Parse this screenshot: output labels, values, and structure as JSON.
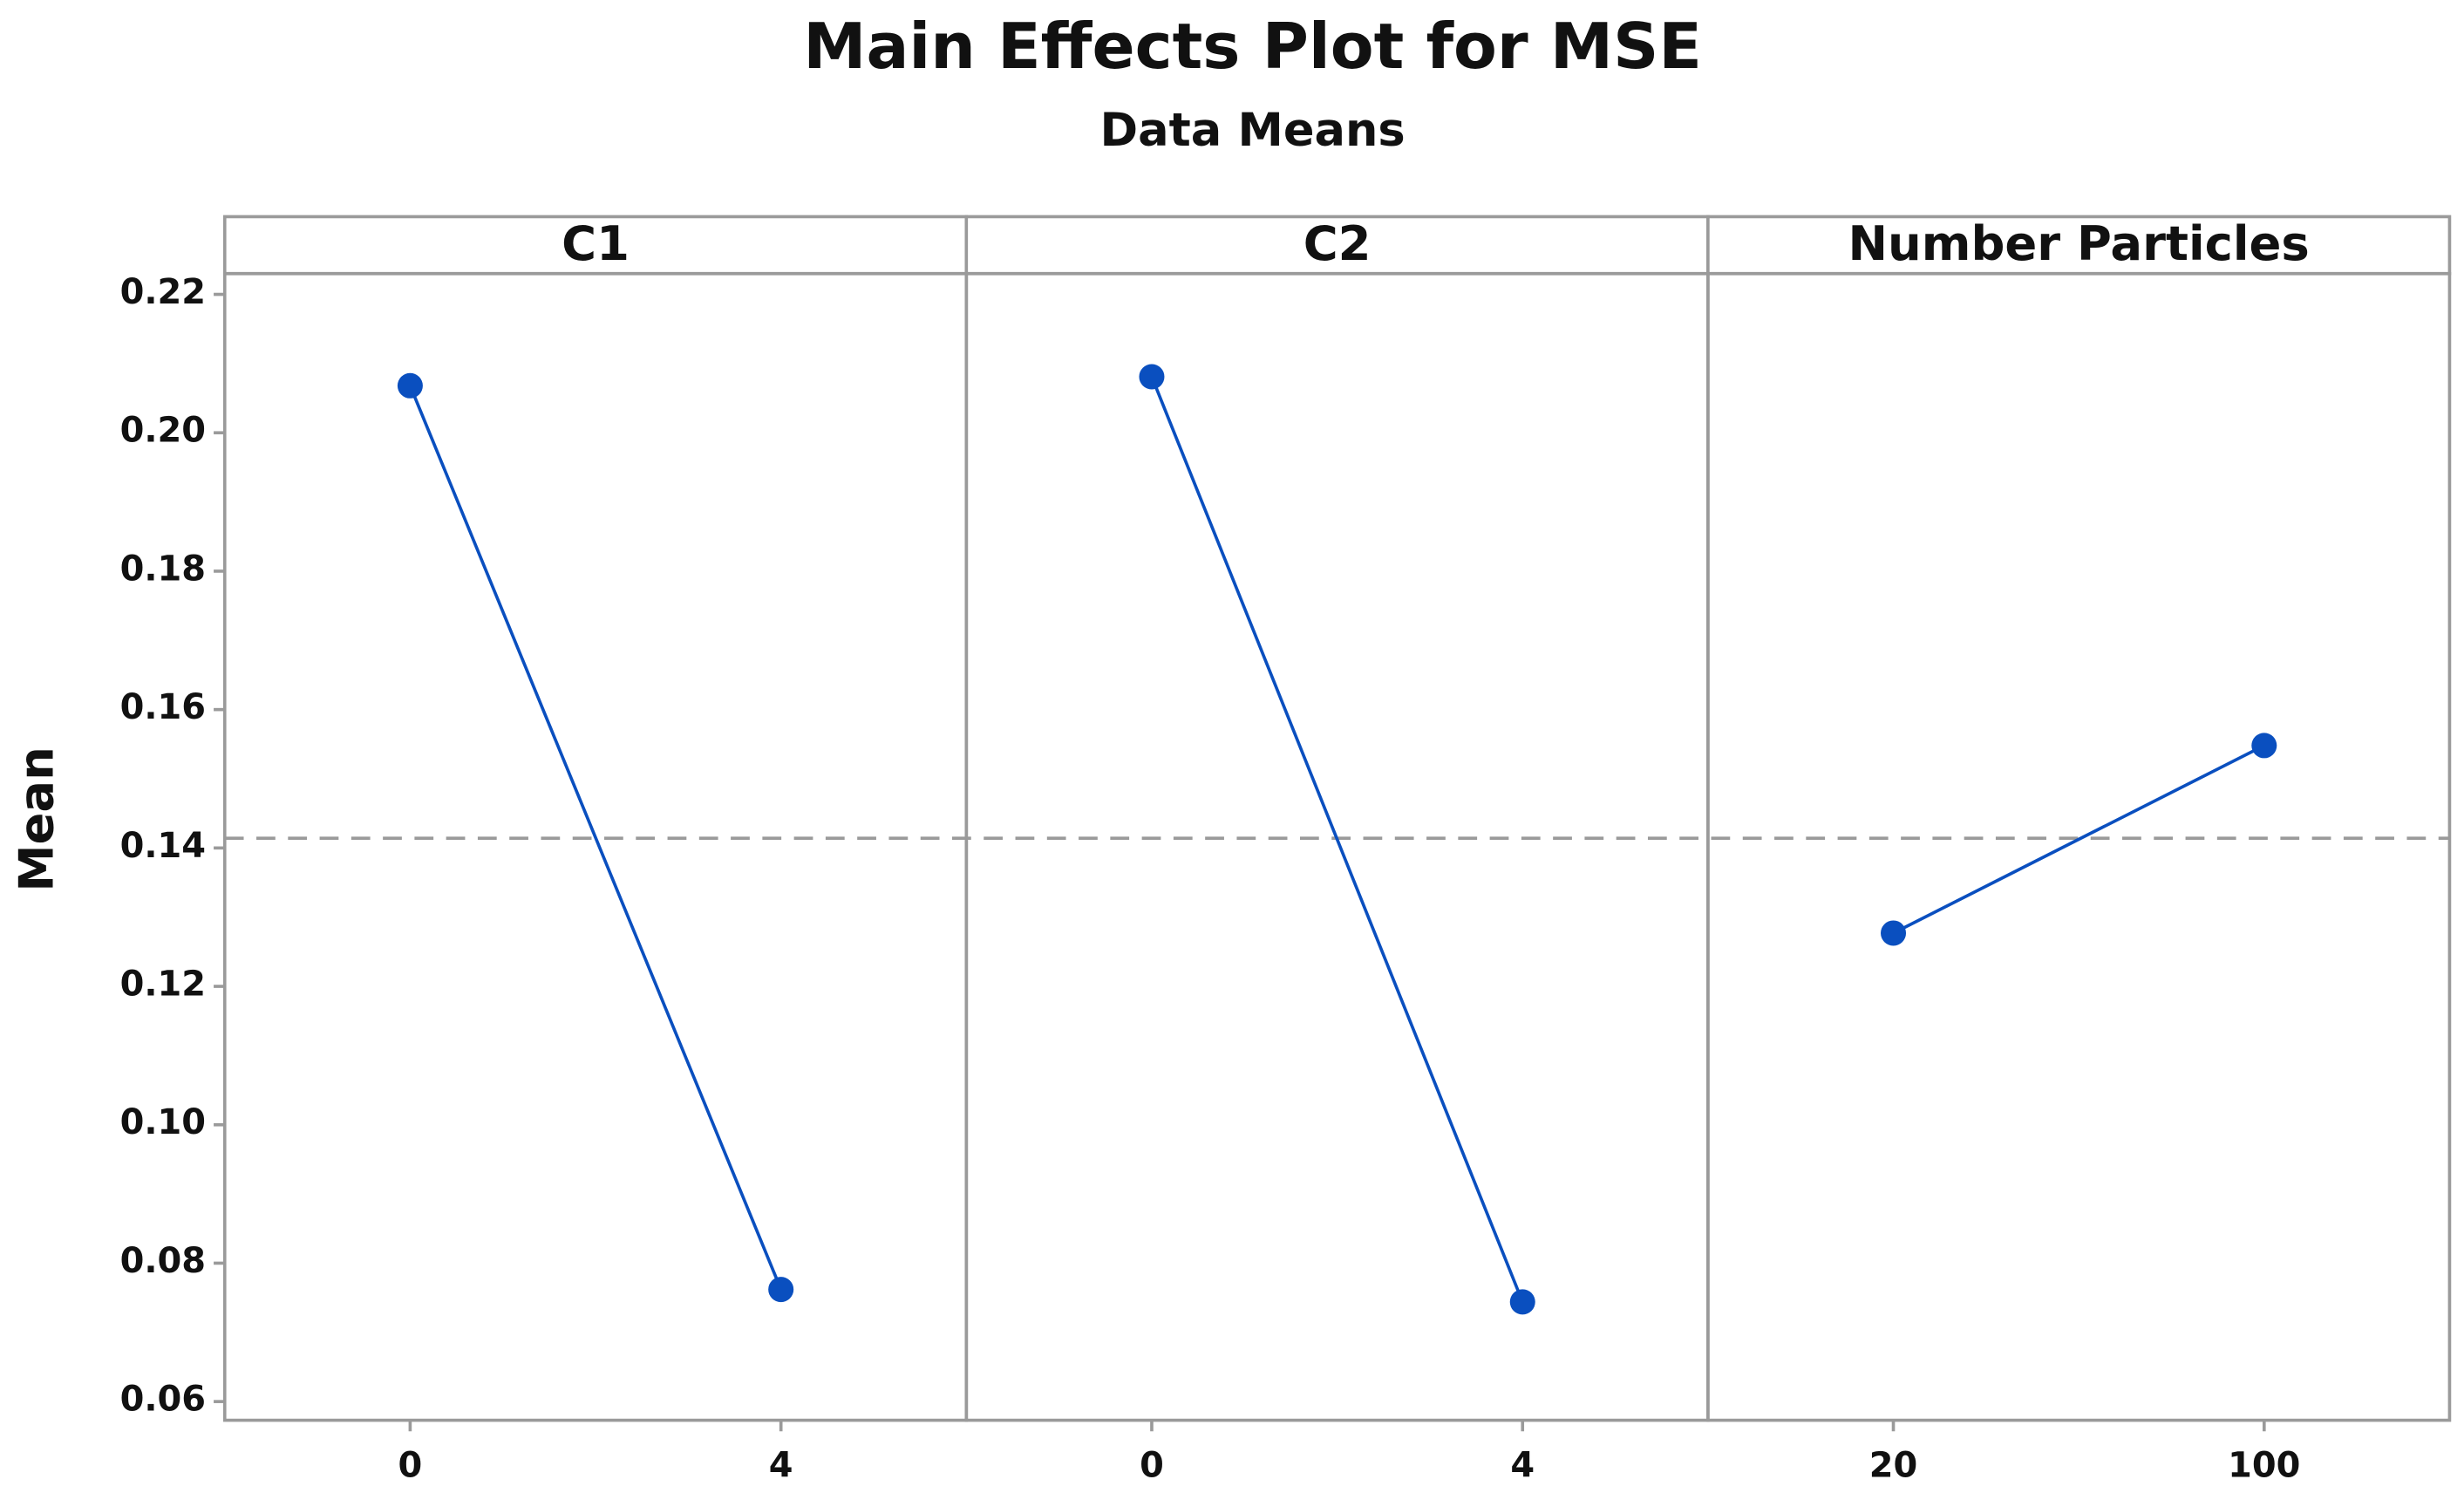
{
  "chart_data": {
    "type": "line",
    "title": "Main Effects Plot for MSE",
    "subtitle": "Data Means",
    "ylabel": "Mean",
    "color": "#0a4fbf",
    "ylim": [
      0.0573,
      0.223
    ],
    "yticks": [
      0.06,
      0.08,
      {
        "value": 0.1,
        "label": "0.10"
      },
      0.12,
      0.14,
      0.16,
      0.18,
      {
        "value": 0.2,
        "label": "0.20"
      },
      0.22
    ],
    "reference_line": 0.1414,
    "panels": [
      {
        "label": "C1",
        "categories": [
          "0",
          "4"
        ],
        "values": [
          0.2068,
          0.0762
        ]
      },
      {
        "label": "C2",
        "categories": [
          "0",
          "4"
        ],
        "values": [
          0.2081,
          0.0744
        ]
      },
      {
        "label": "Number Particles",
        "categories": [
          "20",
          "100"
        ],
        "values": [
          0.1277,
          0.1548
        ]
      }
    ]
  }
}
